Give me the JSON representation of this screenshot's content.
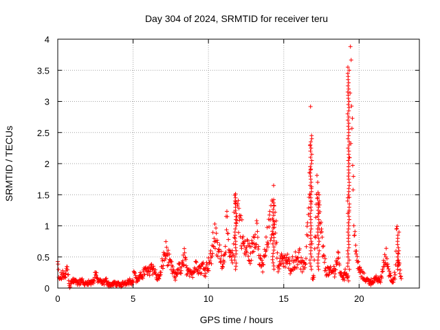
{
  "chart_data": {
    "type": "scatter",
    "title": "Day 304 of 2024, SRMTID for receiver teru",
    "xlabel": "GPS time / hours",
    "ylabel": "SRMTID / TECUs",
    "xlim": [
      0,
      24
    ],
    "ylim": [
      0,
      4
    ],
    "xticks": [
      0,
      5,
      10,
      15,
      20
    ],
    "xtick_labels": [
      "0",
      "5",
      "10",
      "15",
      "20"
    ],
    "yticks": [
      0,
      0.5,
      1,
      1.5,
      2,
      2.5,
      3,
      3.5,
      4
    ],
    "ytick_labels": [
      "0",
      "0.5",
      "1",
      "1.5",
      "2",
      "2.5",
      "3",
      "3.5",
      "4"
    ],
    "grid": true,
    "marker": "+",
    "color": "#ff0000",
    "series": [
      {
        "name": "SRMTID",
        "x": [
          0.0,
          0.1,
          0.2,
          0.3,
          0.4,
          0.5,
          0.6,
          0.7,
          0.8,
          0.9,
          1.0,
          1.2,
          1.4,
          1.6,
          1.8,
          2.0,
          2.2,
          2.4,
          2.5,
          2.6,
          2.8,
          3.0,
          3.2,
          3.4,
          3.6,
          3.8,
          4.0,
          4.2,
          4.4,
          4.6,
          4.8,
          5.0,
          5.1,
          5.2,
          5.4,
          5.6,
          5.8,
          6.0,
          6.2,
          6.4,
          6.6,
          6.8,
          7.0,
          7.2,
          7.4,
          7.6,
          7.8,
          8.0,
          8.2,
          8.4,
          8.6,
          8.8,
          9.0,
          9.2,
          9.4,
          9.6,
          9.8,
          10.0,
          10.2,
          10.4,
          10.6,
          10.8,
          11.0,
          11.2,
          11.4,
          11.6,
          11.8,
          12.0,
          12.2,
          12.4,
          12.6,
          12.8,
          13.0,
          13.2,
          13.4,
          13.6,
          13.8,
          14.0,
          14.2,
          14.4,
          14.6,
          14.8,
          15.0,
          15.2,
          15.4,
          15.6,
          15.8,
          16.0,
          16.2,
          16.4,
          16.6,
          16.7,
          16.8,
          16.9,
          17.0,
          17.2,
          17.4,
          17.6,
          17.8,
          18.0,
          18.2,
          18.4,
          18.6,
          18.8,
          19.0,
          19.2,
          19.3,
          19.4,
          19.5,
          19.6,
          19.7,
          19.8,
          20.0,
          20.2,
          20.4,
          20.6,
          20.8,
          21.0,
          21.2,
          21.4,
          21.6,
          21.8,
          22.0,
          22.2,
          22.4,
          22.5,
          22.6,
          22.8
        ],
        "y": [
          0.4,
          0.12,
          0.18,
          0.2,
          0.22,
          0.15,
          0.35,
          0.2,
          0.02,
          0.1,
          0.12,
          0.1,
          0.08,
          0.12,
          0.06,
          0.1,
          0.08,
          0.12,
          0.25,
          0.15,
          0.1,
          0.08,
          0.12,
          0.06,
          0.05,
          0.08,
          0.06,
          0.05,
          0.08,
          0.1,
          0.12,
          0.1,
          0.3,
          0.12,
          0.15,
          0.22,
          0.28,
          0.25,
          0.35,
          0.3,
          0.15,
          0.2,
          0.45,
          0.6,
          0.4,
          0.3,
          0.15,
          0.35,
          0.25,
          0.55,
          0.2,
          0.3,
          0.25,
          0.4,
          0.3,
          0.35,
          0.3,
          0.4,
          0.5,
          0.9,
          0.6,
          0.55,
          0.4,
          1.0,
          0.5,
          0.45,
          1.45,
          1.2,
          0.9,
          0.6,
          0.65,
          0.5,
          0.8,
          1.0,
          0.4,
          0.35,
          0.6,
          0.9,
          1.1,
          1.4,
          0.3,
          0.5,
          0.4,
          0.45,
          0.35,
          0.4,
          0.45,
          0.55,
          0.35,
          0.3,
          1.1,
          1.7,
          2.45,
          0.15,
          0.2,
          1.5,
          1.1,
          0.55,
          0.3,
          0.25,
          0.25,
          0.3,
          0.5,
          0.2,
          0.2,
          0.25,
          0.15,
          3.55,
          2.8,
          1.6,
          0.95,
          0.5,
          0.3,
          0.2,
          0.15,
          0.12,
          0.1,
          0.12,
          0.15,
          0.1,
          0.35,
          0.5,
          0.25,
          0.12,
          0.2,
          0.9,
          0.4,
          0.15
        ],
        "peaks": [
          {
            "x": 11.8,
            "y": 1.45
          },
          {
            "x": 14.3,
            "y": 1.42
          },
          {
            "x": 16.8,
            "y": 2.45
          },
          {
            "x": 17.3,
            "y": 1.5
          },
          {
            "x": 19.3,
            "y": 3.55
          },
          {
            "x": 22.6,
            "y": 0.9
          }
        ]
      }
    ]
  }
}
